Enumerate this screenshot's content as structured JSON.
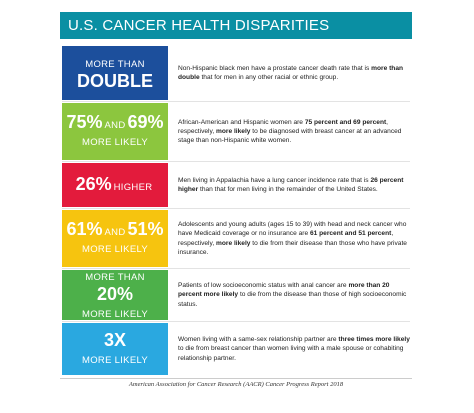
{
  "title": "U.S. CANCER HEALTH DISPARITIES",
  "rows": [
    {
      "color": "#1c4f9c",
      "label": [
        [
          {
            "text": "MORE THAN",
            "big": false
          }
        ],
        [
          {
            "text": "DOUBLE",
            "big": true
          }
        ]
      ],
      "text": [
        {
          "text": "Non-Hispanic black men have a prostate cancer death rate that is ",
          "bold": false
        },
        {
          "text": "more than double",
          "bold": true
        },
        {
          "text": " that for men in any other racial or ethnic group.",
          "bold": false
        }
      ]
    },
    {
      "color": "#8cc63e",
      "label": [
        [
          {
            "text": "75%",
            "big": true
          },
          {
            "text": "AND",
            "big": false
          },
          {
            "text": "69%",
            "big": true
          }
        ],
        [
          {
            "text": "MORE LIKELY",
            "big": false
          }
        ]
      ],
      "text": [
        {
          "text": "African-American and Hispanic women are ",
          "bold": false
        },
        {
          "text": "75 percent and 69 percent",
          "bold": true
        },
        {
          "text": ", respectively, ",
          "bold": false
        },
        {
          "text": "more likely",
          "bold": true
        },
        {
          "text": " to be diagnosed with breast cancer at an advanced stage than non-Hispanic white women.",
          "bold": false
        }
      ]
    },
    {
      "color": "#e31b3c",
      "label": [
        [
          {
            "text": "26%",
            "big": true
          },
          {
            "text": "HIGHER",
            "big": false
          }
        ]
      ],
      "text": [
        {
          "text": "Men living in Appalachia have a lung cancer incidence rate that is ",
          "bold": false
        },
        {
          "text": "26 percent higher",
          "bold": true
        },
        {
          "text": " than that for men living in the remainder of the United States.",
          "bold": false
        }
      ]
    },
    {
      "color": "#f6c40f",
      "label": [
        [
          {
            "text": "61%",
            "big": true
          },
          {
            "text": "AND",
            "big": false
          },
          {
            "text": "51%",
            "big": true
          }
        ],
        [
          {
            "text": "MORE LIKELY",
            "big": false
          }
        ]
      ],
      "text": [
        {
          "text": "Adolescents and young adults (ages 15 to 39) with head and neck cancer who have Medicaid coverage or no insurance are ",
          "bold": false
        },
        {
          "text": "61 percent and 51 percent",
          "bold": true
        },
        {
          "text": ", respectively, ",
          "bold": false
        },
        {
          "text": "more likely",
          "bold": true
        },
        {
          "text": " to die from their disease than those who have private insurance.",
          "bold": false
        }
      ]
    },
    {
      "color": "#4db04a",
      "label": [
        [
          {
            "text": "MORE THAN",
            "big": false
          }
        ],
        [
          {
            "text": "20%",
            "big": true
          }
        ],
        [
          {
            "text": "MORE LIKELY",
            "big": false
          }
        ]
      ],
      "text": [
        {
          "text": "Patients of low socioeconomic status with anal cancer are ",
          "bold": false
        },
        {
          "text": "more than 20 percent more likely",
          "bold": true
        },
        {
          "text": " to die from the disease than those of high socioeconomic status.",
          "bold": false
        }
      ]
    },
    {
      "color": "#2aa8e0",
      "label": [
        [
          {
            "text": "3X",
            "big": true
          }
        ],
        [
          {
            "text": "MORE LIKELY",
            "big": false
          }
        ]
      ],
      "text": [
        {
          "text": "Women living with a same-sex relationship partner are ",
          "bold": false
        },
        {
          "text": "three times more likely",
          "bold": true
        },
        {
          "text": " to die from breast cancer than women living with a male spouse or cohabiting relationship partner.",
          "bold": false
        }
      ]
    }
  ],
  "footer": "American Association for Cancer Research (AACR) Cancer Progress Report 2018"
}
